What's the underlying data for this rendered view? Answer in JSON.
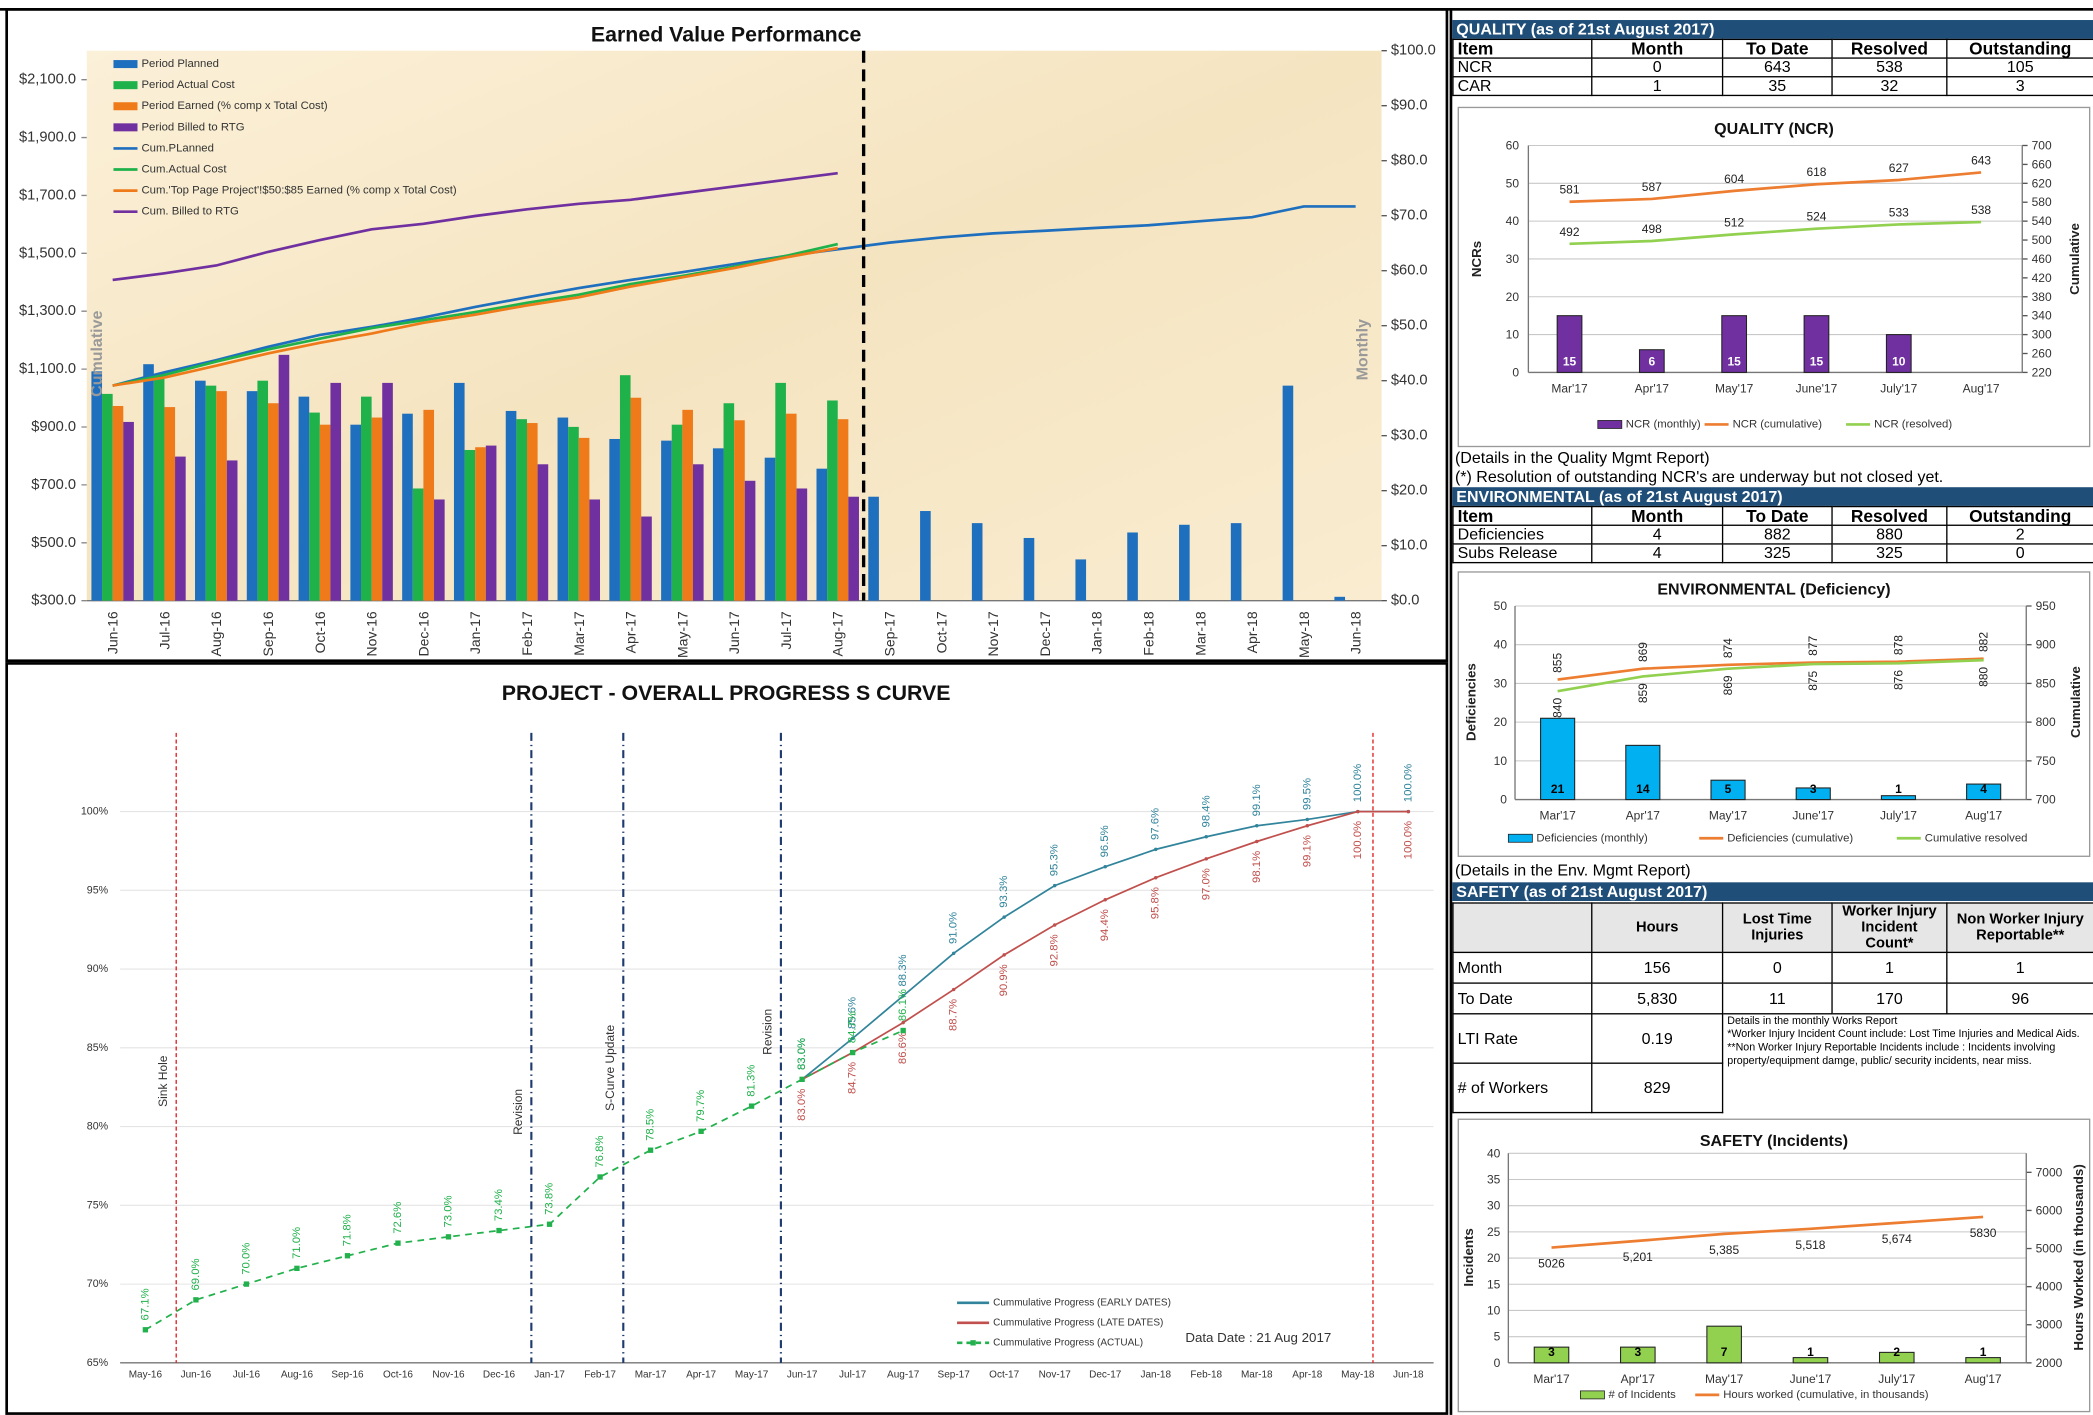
{
  "chart_data": [
    {
      "type": "combo",
      "title": "Earned Value Performance",
      "y_label": "Cumulative",
      "y2_label": "Monthly",
      "categories": [
        "Jun-16",
        "Jul-16",
        "Aug-16",
        "Sep-16",
        "Oct-16",
        "Nov-16",
        "Dec-16",
        "Jan-17",
        "Feb-17",
        "Mar-17",
        "Apr-17",
        "May-17",
        "Jun-17",
        "Jul-17",
        "Aug-17",
        "Sep-17",
        "Oct-17",
        "Nov-17",
        "Dec-17",
        "Jan-18",
        "Feb-18",
        "Mar-18",
        "Apr-18",
        "May-18",
        "Jun-18"
      ],
      "ylim": [
        300,
        2200
      ],
      "yticks": [
        {
          "value": 300,
          "label": "$300.0"
        },
        {
          "value": 500,
          "label": "$500.0"
        },
        {
          "value": 700,
          "label": "$700.0"
        },
        {
          "value": 900,
          "label": "$900.0"
        },
        {
          "value": 1100,
          "label": "$1,100.0"
        },
        {
          "value": 1300,
          "label": "$1,300.0"
        },
        {
          "value": 1500,
          "label": "$1,500.0"
        },
        {
          "value": 1700,
          "label": "$1,700.0"
        },
        {
          "value": 1900,
          "label": "$1,900.0"
        },
        {
          "value": 2100,
          "label": "$2,100.0"
        }
      ],
      "y2lim": [
        0,
        100
      ],
      "y2ticks": [
        {
          "value": 0,
          "label": "$0.0"
        },
        {
          "value": 10,
          "label": "$10.0"
        },
        {
          "value": 20,
          "label": "$20.0"
        },
        {
          "value": 30,
          "label": "$30.0"
        },
        {
          "value": 40,
          "label": "$40.0"
        },
        {
          "value": 50,
          "label": "$50.0"
        },
        {
          "value": 60,
          "label": "$60.0"
        },
        {
          "value": 70,
          "label": "$70.0"
        },
        {
          "value": 80,
          "label": "$80.0"
        },
        {
          "value": 90,
          "label": "$90.0"
        },
        {
          "value": 100,
          "label": "$100.0"
        }
      ],
      "grid": false,
      "series": [
        {
          "name": "Period Planned",
          "type": "bar",
          "axis": "y2",
          "color": "#1f6fbf",
          "values": [
            41.7,
            43,
            40,
            38.1,
            37.1,
            32,
            34,
            39.6,
            34.5,
            33.3,
            29.4,
            29.1,
            27.7,
            26,
            24,
            18.9,
            16.3,
            14.1,
            11.4,
            7.5,
            12.4,
            13.8,
            14.1,
            39.1,
            0.7
          ]
        },
        {
          "name": "Period Actual Cost",
          "type": "bar",
          "axis": "y2",
          "color": "#1fb14a",
          "values": [
            37.6,
            41.3,
            39.1,
            40,
            34.2,
            37.1,
            20.4,
            27.4,
            33,
            31.6,
            41,
            32,
            35.9,
            39.6,
            36.4,
            null,
            null,
            null,
            null,
            null,
            null,
            null,
            null,
            null,
            null
          ]
        },
        {
          "name": "Period Earned (% comp x Total Cost)",
          "type": "bar",
          "axis": "y2",
          "color": "#ef7a1a",
          "values": [
            35.4,
            35.2,
            38.1,
            35.9,
            32,
            33.3,
            34.7,
            27.9,
            32.3,
            29.6,
            36.9,
            34.7,
            32.8,
            34,
            33,
            null,
            null,
            null,
            null,
            null,
            null,
            null,
            null,
            null,
            null
          ]
        },
        {
          "name": "Period Billed to RTG",
          "type": "bar",
          "axis": "y2",
          "color": "#7030a0",
          "values": [
            32.5,
            26.2,
            25.5,
            44.7,
            39.6,
            39.6,
            18.4,
            28.2,
            24.8,
            18.4,
            15.3,
            24.8,
            21.8,
            20.4,
            18.9,
            null,
            null,
            null,
            null,
            null,
            null,
            null,
            null,
            null,
            null
          ]
        },
        {
          "name": "Cum.PLanned",
          "type": "line",
          "axis": "y",
          "color": "#1f6fbf",
          "values": [
            1043,
            1089,
            1131,
            1177,
            1218,
            1246,
            1278,
            1315,
            1348,
            1380,
            1408,
            1435,
            1463,
            1491,
            1514,
            1537,
            1555,
            1569,
            1578,
            1588,
            1597,
            1611,
            1625,
            1662,
            1662
          ]
        },
        {
          "name": "Cum.Actual Cost",
          "type": "line",
          "axis": "y",
          "color": "#1fb14a",
          "values": [
            1043,
            1080,
            1126,
            1168,
            1205,
            1242,
            1269,
            1297,
            1329,
            1357,
            1394,
            1422,
            1454,
            1491,
            1532,
            null,
            null,
            null,
            null,
            null,
            null,
            null,
            null,
            null,
            null
          ]
        },
        {
          "name": "Cum.'Top Page Project'!$50:$85 Earned (% comp x Total Cost)",
          "type": "line",
          "axis": "y",
          "color": "#ef7a1a",
          "values": [
            1043,
            1071,
            1112,
            1154,
            1191,
            1223,
            1260,
            1288,
            1320,
            1348,
            1385,
            1417,
            1449,
            1486,
            1518,
            null,
            null,
            null,
            null,
            null,
            null,
            null,
            null,
            null,
            null
          ]
        },
        {
          "name": "Cum. Billed to RTG",
          "type": "line",
          "axis": "y",
          "color": "#7030a0",
          "values": [
            1408,
            1431,
            1458,
            1505,
            1546,
            1583,
            1602,
            1629,
            1652,
            1671,
            1685,
            1708,
            1731,
            1754,
            1777,
            null,
            null,
            null,
            null,
            null,
            null,
            null,
            null,
            null,
            null
          ]
        }
      ]
    },
    {
      "type": "line",
      "title": "PROJECT - OVERALL PROGRESS S CURVE",
      "categories": [
        "May-16",
        "Jun-16",
        "Jul-16",
        "Aug-16",
        "Sep-16",
        "Oct-16",
        "Nov-16",
        "Dec-16",
        "Jan-17",
        "Feb-17",
        "Mar-17",
        "Apr-17",
        "May-17",
        "Jun-17",
        "Jul-17",
        "Aug-17",
        "Sep-17",
        "Oct-17",
        "Nov-17",
        "Dec-17",
        "Jan-18",
        "Feb-18",
        "Mar-18",
        "Apr-18",
        "May-18",
        "Jun-18"
      ],
      "ylim": [
        65,
        105
      ],
      "yticks": [
        {
          "value": 65,
          "label": "65%"
        },
        {
          "value": 70,
          "label": "70%"
        },
        {
          "value": 75,
          "label": "75%"
        },
        {
          "value": 80,
          "label": "80%"
        },
        {
          "value": 85,
          "label": "85%"
        },
        {
          "value": 90,
          "label": "90%"
        },
        {
          "value": 95,
          "label": "95%"
        },
        {
          "value": 100,
          "label": "100%"
        }
      ],
      "grid": true,
      "annotations": [
        "Sink Hole",
        "Revision",
        "S-Curve Update",
        "Revision"
      ],
      "note": "Data Date : 21 Aug 2017",
      "series": [
        {
          "name": "Cummulative Progress (EARLY DATES)",
          "type": "line",
          "color": "#31849b",
          "values": [
            null,
            null,
            null,
            null,
            null,
            null,
            null,
            null,
            null,
            null,
            null,
            null,
            null,
            83.0,
            85.6,
            88.3,
            91.0,
            93.3,
            95.3,
            96.5,
            97.6,
            98.4,
            99.1,
            99.5,
            100.0,
            100.0
          ],
          "value_labels": [
            null,
            null,
            null,
            null,
            null,
            null,
            null,
            null,
            null,
            null,
            null,
            null,
            null,
            "83.0%",
            "85.6%",
            "88.3%",
            "91.0%",
            "93.3%",
            "95.3%",
            "96.5%",
            "97.6%",
            "98.4%",
            "99.1%",
            "99.5%",
            "100.0%",
            "100.0%"
          ]
        },
        {
          "name": "Cummulative Progress (LATE DATES)",
          "type": "line",
          "color": "#c0504d",
          "values": [
            null,
            null,
            null,
            null,
            null,
            null,
            null,
            null,
            null,
            null,
            null,
            null,
            null,
            83.0,
            84.7,
            86.6,
            88.7,
            90.9,
            92.8,
            94.4,
            95.8,
            97.0,
            98.1,
            99.1,
            100.0,
            100.0
          ],
          "value_labels": [
            null,
            null,
            null,
            null,
            null,
            null,
            null,
            null,
            null,
            null,
            null,
            null,
            null,
            "83.0%",
            "84.7%",
            "86.6%",
            "88.7%",
            "90.9%",
            "92.8%",
            "94.4%",
            "95.8%",
            "97.0%",
            "98.1%",
            "99.1%",
            "100.0%",
            "100.0%"
          ]
        },
        {
          "name": "Cummulative Progress (ACTUAL)",
          "type": "line",
          "color": "#22b14c",
          "dashed": true,
          "marker": "square",
          "values": [
            67.1,
            69.0,
            70.0,
            71.0,
            71.8,
            72.6,
            73.0,
            73.4,
            73.8,
            76.8,
            78.5,
            79.7,
            81.3,
            83.0,
            84.7,
            86.1,
            null,
            null,
            null,
            null,
            null,
            null,
            null,
            null,
            null,
            null
          ],
          "value_labels": [
            "67.1%",
            "69.0%",
            "70.0%",
            "71.0%",
            "71.8%",
            "72.6%",
            "73.0%",
            "73.4%",
            "73.8%",
            "76.8%",
            "78.5%",
            "79.7%",
            "81.3%",
            "83.0%",
            "84.7%",
            "86.1%",
            null,
            null,
            null,
            null,
            null,
            null,
            null,
            null,
            null,
            null
          ]
        }
      ]
    },
    {
      "type": "combo",
      "title": "QUALITY (NCR)",
      "y_label": "NCRs",
      "y2_label": "Cumulative",
      "categories": [
        "Mar'17",
        "Apr'17",
        "May'17",
        "June'17",
        "July'17",
        "Aug'17"
      ],
      "ylim": [
        0,
        60
      ],
      "yticks": [
        0,
        10,
        20,
        30,
        40,
        50,
        60
      ],
      "y2lim": [
        220,
        700
      ],
      "y2ticks": [
        220,
        260,
        300,
        340,
        380,
        420,
        460,
        500,
        540,
        580,
        620,
        660,
        700
      ],
      "grid": true,
      "series": [
        {
          "name": "NCR (monthly)",
          "type": "bar",
          "axis": "y",
          "color": "#7030a0",
          "values": [
            15,
            6,
            15,
            15,
            10,
            0
          ]
        },
        {
          "name": "NCR (cumulative)",
          "type": "line",
          "axis": "y2",
          "color": "#ed7d31",
          "values": [
            581,
            587,
            604,
            618,
            627,
            643
          ]
        },
        {
          "name": "NCR (resolved)",
          "type": "line",
          "axis": "y2",
          "color": "#92d050",
          "values": [
            492,
            498,
            512,
            524,
            533,
            538
          ]
        }
      ]
    },
    {
      "type": "combo",
      "title": "ENVIRONMENTAL (Deficiency)",
      "y_label": "Deficiencies",
      "y2_label": "Cumulative",
      "categories": [
        "Mar'17",
        "Apr'17",
        "May'17",
        "June'17",
        "July'17",
        "Aug'17"
      ],
      "ylim": [
        0,
        50
      ],
      "yticks": [
        0,
        10,
        20,
        30,
        40,
        50
      ],
      "y2lim": [
        700,
        950
      ],
      "y2ticks": [
        700,
        750,
        800,
        850,
        900,
        950
      ],
      "grid": true,
      "series": [
        {
          "name": "Deficiencies (monthly)",
          "type": "bar",
          "axis": "y",
          "color": "#00b0f0",
          "values": [
            21,
            14,
            5,
            3,
            1,
            4
          ]
        },
        {
          "name": "Deficiencies (cumulative)",
          "type": "line",
          "axis": "y2",
          "color": "#ed7d31",
          "values": [
            855,
            869,
            874,
            877,
            878,
            882
          ]
        },
        {
          "name": "Cumulative resolved",
          "type": "line",
          "axis": "y2",
          "color": "#92d050",
          "values": [
            840,
            859,
            869,
            875,
            876,
            880
          ]
        }
      ]
    },
    {
      "type": "combo",
      "title": "SAFETY (Incidents)",
      "y_label": "Incidents",
      "y2_label": "Hours Worked  (in thousands)",
      "categories": [
        "Mar'17",
        "Apr'17",
        "May'17",
        "June'17",
        "July'17",
        "Aug'17"
      ],
      "ylim": [
        0,
        40
      ],
      "yticks": [
        0,
        5,
        10,
        15,
        20,
        25,
        30,
        35,
        40
      ],
      "y2lim": [
        2000,
        7500
      ],
      "y2ticks": [
        2000,
        3000,
        4000,
        5000,
        6000,
        7000
      ],
      "grid": true,
      "series": [
        {
          "name": "# of Incidents",
          "type": "bar",
          "axis": "y",
          "color": "#92d050",
          "values": [
            3,
            3,
            7,
            1,
            2,
            1
          ]
        },
        {
          "name": "Hours worked (cumulative, in thousands)",
          "type": "line",
          "axis": "y2",
          "color": "#ed7d31",
          "values": [
            5026,
            5201,
            5385,
            5518,
            5674,
            5830
          ],
          "value_labels": [
            "5026",
            "5,201",
            "5,385",
            "5,518",
            "5,674",
            "5830"
          ]
        }
      ]
    }
  ],
  "tables": {
    "quality": {
      "title": "QUALITY (as of 21st August 2017)",
      "columns": [
        "Item",
        "Month",
        "To Date",
        "Resolved",
        "Outstanding"
      ],
      "rows": [
        [
          "NCR",
          "0",
          "643",
          "538",
          "105"
        ],
        [
          "CAR",
          "1",
          "35",
          "32",
          "3"
        ]
      ],
      "notes": [
        "(Details in the Quality Mgmt Report)",
        "(*) Resolution of outstanding NCR's are underway but not closed yet."
      ]
    },
    "environmental": {
      "title": "ENVIRONMENTAL (as of 21st August 2017)",
      "columns": [
        "Item",
        "Month",
        "To Date",
        "Resolved",
        "Outstanding"
      ],
      "rows": [
        [
          "Deficiencies",
          "4",
          "882",
          "880",
          "2"
        ],
        [
          "Subs Release",
          "4",
          "325",
          "325",
          "0"
        ]
      ],
      "notes": [
        "(Details in the Env. Mgmt Report)"
      ]
    },
    "safety": {
      "title": "SAFETY (as of 21st August 2017)",
      "columns": [
        "Hours",
        "Lost Time Injuries",
        "Worker Injury Incident Count*",
        "Non Worker Injury Reportable**"
      ],
      "rows": [
        [
          "Month",
          "156",
          "0",
          "1",
          "1"
        ],
        [
          "To Date",
          "5,830",
          "11",
          "170",
          "96"
        ],
        [
          "LTI Rate",
          "0.19"
        ],
        [
          "# of Workers",
          "829"
        ]
      ],
      "notes": [
        "Details in the monthly Works Report",
        "*Worker Injury Incident Count include: Lost Time Injuries and Medical Aids.",
        "**Non Worker Injury Reportable Incidents include :  Incidents involving property/equipment damge, public/ security incidents, near miss."
      ]
    }
  }
}
